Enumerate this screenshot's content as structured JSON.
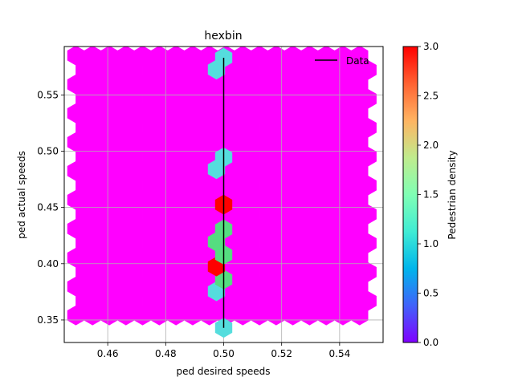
{
  "chart_data": {
    "type": "hexbin",
    "title": "hexbin",
    "xlabel": "ped desired speeds",
    "ylabel": "ped actual speeds",
    "xlim": [
      0.445,
      0.555
    ],
    "ylim": [
      0.33,
      0.593
    ],
    "xticks": [
      0.46,
      0.48,
      0.5,
      0.52,
      0.54
    ],
    "xtick_labels": [
      "0.46",
      "0.48",
      "0.50",
      "0.52",
      "0.54"
    ],
    "yticks": [
      0.35,
      0.4,
      0.45,
      0.5,
      0.55
    ],
    "ytick_labels": [
      "0.35",
      "0.40",
      "0.45",
      "0.50",
      "0.55"
    ],
    "grid": true,
    "colormap": "rainbow",
    "colorbar": {
      "label": "Pedestrian density",
      "range": [
        0,
        3
      ],
      "ticks": [
        0.0,
        0.5,
        1.0,
        1.5,
        2.0,
        2.5,
        3.0
      ],
      "tick_labels": [
        "0.0",
        "0.5",
        "1.0",
        "1.5",
        "2.0",
        "2.5",
        "3.0"
      ]
    },
    "background_count": 0,
    "hexbin_extent": {
      "x": [
        0.449,
        0.551
      ],
      "y": [
        0.343,
        0.585
      ]
    },
    "cells": [
      {
        "x": 0.5,
        "y": 0.343,
        "count": 1
      },
      {
        "x": 0.4975,
        "y": 0.3755,
        "count": 1
      },
      {
        "x": 0.5,
        "y": 0.386,
        "count": 2
      },
      {
        "x": 0.4975,
        "y": 0.3975,
        "count": 3
      },
      {
        "x": 0.5,
        "y": 0.408,
        "count": 2
      },
      {
        "x": 0.4975,
        "y": 0.4195,
        "count": 2
      },
      {
        "x": 0.5,
        "y": 0.4305,
        "count": 2
      },
      {
        "x": 0.5,
        "y": 0.4525,
        "count": 3
      },
      {
        "x": 0.4975,
        "y": 0.484,
        "count": 1
      },
      {
        "x": 0.5,
        "y": 0.4945,
        "count": 1
      },
      {
        "x": 0.4975,
        "y": 0.5725,
        "count": 1
      },
      {
        "x": 0.5,
        "y": 0.583,
        "count": 1
      }
    ],
    "series": [
      {
        "name": "Data",
        "type": "line",
        "color": "#000000",
        "x": [
          0.5,
          0.5
        ],
        "y": [
          0.343,
          0.583
        ]
      }
    ],
    "legend": {
      "placement": "top-right",
      "entries": [
        "Data"
      ]
    }
  }
}
